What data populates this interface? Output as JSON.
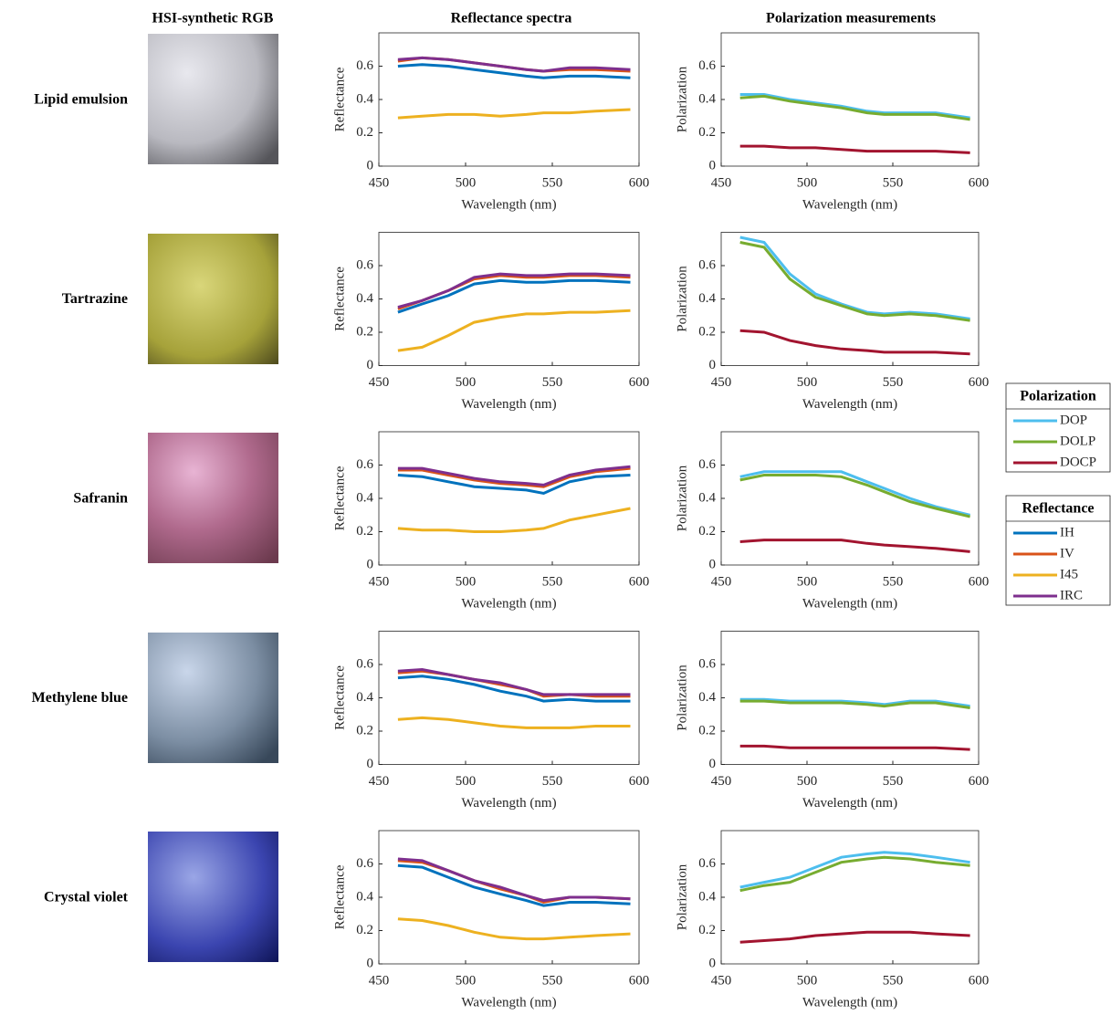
{
  "column_titles": [
    "HSI-synthetic RGB",
    "Reflectance spectra",
    "Polarization measurements"
  ],
  "row_labels": [
    "Lipid emulsion",
    "Tartrazine",
    "Safranin",
    "Methylene blue",
    "Crystal violet"
  ],
  "legends": [
    {
      "title": "Polarization"
    },
    {
      "title": "Reflectance"
    }
  ],
  "chart_data": [
    {
      "type": "line",
      "xlabel": "Wavelength (nm)",
      "ylabel": "Reflectance",
      "x": [
        461,
        475,
        490,
        505,
        520,
        535,
        545,
        560,
        575,
        595
      ],
      "xlim": [
        450,
        600
      ],
      "ylim": [
        0,
        0.8
      ],
      "xticks": [
        450,
        500,
        550,
        600
      ],
      "yticks": [
        0,
        0.2,
        0.4,
        0.6
      ],
      "series": [
        {
          "name": "IH",
          "color": "#0072BD",
          "values": [
            0.6,
            0.61,
            0.6,
            0.58,
            0.56,
            0.54,
            0.53,
            0.54,
            0.54,
            0.53
          ]
        },
        {
          "name": "IV",
          "color": "#D95319",
          "values": [
            0.63,
            0.65,
            0.64,
            0.62,
            0.6,
            0.58,
            0.57,
            0.58,
            0.58,
            0.57
          ]
        },
        {
          "name": "I45",
          "color": "#EDB120",
          "values": [
            0.29,
            0.3,
            0.31,
            0.31,
            0.3,
            0.31,
            0.32,
            0.32,
            0.33,
            0.34
          ]
        },
        {
          "name": "IRC",
          "color": "#7E2F8E",
          "values": [
            0.64,
            0.65,
            0.64,
            0.62,
            0.6,
            0.58,
            0.57,
            0.59,
            0.59,
            0.58
          ]
        }
      ]
    },
    {
      "type": "line",
      "xlabel": "Wavelength (nm)",
      "ylabel": "Polarization",
      "x": [
        461,
        475,
        490,
        505,
        520,
        535,
        545,
        560,
        575,
        595
      ],
      "xlim": [
        450,
        600
      ],
      "ylim": [
        0,
        0.8
      ],
      "xticks": [
        450,
        500,
        550,
        600
      ],
      "yticks": [
        0,
        0.2,
        0.4,
        0.6
      ],
      "series": [
        {
          "name": "DOP",
          "color": "#4DBEEE",
          "values": [
            0.43,
            0.43,
            0.4,
            0.38,
            0.36,
            0.33,
            0.32,
            0.32,
            0.32,
            0.29
          ]
        },
        {
          "name": "DOLP",
          "color": "#77AC30",
          "values": [
            0.41,
            0.42,
            0.39,
            0.37,
            0.35,
            0.32,
            0.31,
            0.31,
            0.31,
            0.28
          ]
        },
        {
          "name": "DOCP",
          "color": "#A2142F",
          "values": [
            0.12,
            0.12,
            0.11,
            0.11,
            0.1,
            0.09,
            0.09,
            0.09,
            0.09,
            0.08
          ]
        }
      ]
    },
    {
      "type": "line",
      "xlabel": "Wavelength (nm)",
      "ylabel": "Reflectance",
      "x": [
        461,
        475,
        490,
        505,
        520,
        535,
        545,
        560,
        575,
        595
      ],
      "xlim": [
        450,
        600
      ],
      "ylim": [
        0,
        0.8
      ],
      "xticks": [
        450,
        500,
        550,
        600
      ],
      "yticks": [
        0,
        0.2,
        0.4,
        0.6
      ],
      "series": [
        {
          "name": "IH",
          "color": "#0072BD",
          "values": [
            0.32,
            0.37,
            0.42,
            0.49,
            0.51,
            0.5,
            0.5,
            0.51,
            0.51,
            0.5
          ]
        },
        {
          "name": "IV",
          "color": "#D95319",
          "values": [
            0.34,
            0.39,
            0.45,
            0.52,
            0.54,
            0.53,
            0.53,
            0.54,
            0.54,
            0.53
          ]
        },
        {
          "name": "I45",
          "color": "#EDB120",
          "values": [
            0.09,
            0.11,
            0.18,
            0.26,
            0.29,
            0.31,
            0.31,
            0.32,
            0.32,
            0.33
          ]
        },
        {
          "name": "IRC",
          "color": "#7E2F8E",
          "values": [
            0.35,
            0.39,
            0.45,
            0.53,
            0.55,
            0.54,
            0.54,
            0.55,
            0.55,
            0.54
          ]
        }
      ]
    },
    {
      "type": "line",
      "xlabel": "Wavelength (nm)",
      "ylabel": "Polarization",
      "x": [
        461,
        475,
        490,
        505,
        520,
        535,
        545,
        560,
        575,
        595
      ],
      "xlim": [
        450,
        600
      ],
      "ylim": [
        0,
        0.8
      ],
      "xticks": [
        450,
        500,
        550,
        600
      ],
      "yticks": [
        0,
        0.2,
        0.4,
        0.6
      ],
      "series": [
        {
          "name": "DOP",
          "color": "#4DBEEE",
          "values": [
            0.77,
            0.74,
            0.55,
            0.43,
            0.37,
            0.32,
            0.31,
            0.32,
            0.31,
            0.28
          ]
        },
        {
          "name": "DOLP",
          "color": "#77AC30",
          "values": [
            0.74,
            0.71,
            0.52,
            0.41,
            0.36,
            0.31,
            0.3,
            0.31,
            0.3,
            0.27
          ]
        },
        {
          "name": "DOCP",
          "color": "#A2142F",
          "values": [
            0.21,
            0.2,
            0.15,
            0.12,
            0.1,
            0.09,
            0.08,
            0.08,
            0.08,
            0.07
          ]
        }
      ]
    },
    {
      "type": "line",
      "xlabel": "Wavelength (nm)",
      "ylabel": "Reflectance",
      "x": [
        461,
        475,
        490,
        505,
        520,
        535,
        545,
        560,
        575,
        595
      ],
      "xlim": [
        450,
        600
      ],
      "ylim": [
        0,
        0.8
      ],
      "xticks": [
        450,
        500,
        550,
        600
      ],
      "yticks": [
        0,
        0.2,
        0.4,
        0.6
      ],
      "series": [
        {
          "name": "IH",
          "color": "#0072BD",
          "values": [
            0.54,
            0.53,
            0.5,
            0.47,
            0.46,
            0.45,
            0.43,
            0.5,
            0.53,
            0.54
          ]
        },
        {
          "name": "IV",
          "color": "#D95319",
          "values": [
            0.57,
            0.57,
            0.54,
            0.51,
            0.49,
            0.48,
            0.47,
            0.53,
            0.56,
            0.58
          ]
        },
        {
          "name": "I45",
          "color": "#EDB120",
          "values": [
            0.22,
            0.21,
            0.21,
            0.2,
            0.2,
            0.21,
            0.22,
            0.27,
            0.3,
            0.34
          ]
        },
        {
          "name": "IRC",
          "color": "#7E2F8E",
          "values": [
            0.58,
            0.58,
            0.55,
            0.52,
            0.5,
            0.49,
            0.48,
            0.54,
            0.57,
            0.59
          ]
        }
      ]
    },
    {
      "type": "line",
      "xlabel": "Wavelength (nm)",
      "ylabel": "Polarization",
      "x": [
        461,
        475,
        490,
        505,
        520,
        535,
        545,
        560,
        575,
        595
      ],
      "xlim": [
        450,
        600
      ],
      "ylim": [
        0,
        0.8
      ],
      "xticks": [
        450,
        500,
        550,
        600
      ],
      "yticks": [
        0,
        0.2,
        0.4,
        0.6
      ],
      "series": [
        {
          "name": "DOP",
          "color": "#4DBEEE",
          "values": [
            0.53,
            0.56,
            0.56,
            0.56,
            0.56,
            0.5,
            0.46,
            0.4,
            0.35,
            0.3
          ]
        },
        {
          "name": "DOLP",
          "color": "#77AC30",
          "values": [
            0.51,
            0.54,
            0.54,
            0.54,
            0.53,
            0.48,
            0.44,
            0.38,
            0.34,
            0.29
          ]
        },
        {
          "name": "DOCP",
          "color": "#A2142F",
          "values": [
            0.14,
            0.15,
            0.15,
            0.15,
            0.15,
            0.13,
            0.12,
            0.11,
            0.1,
            0.08
          ]
        }
      ]
    },
    {
      "type": "line",
      "xlabel": "Wavelength (nm)",
      "ylabel": "Reflectance",
      "x": [
        461,
        475,
        490,
        505,
        520,
        535,
        545,
        560,
        575,
        595
      ],
      "xlim": [
        450,
        600
      ],
      "ylim": [
        0,
        0.8
      ],
      "xticks": [
        450,
        500,
        550,
        600
      ],
      "yticks": [
        0,
        0.2,
        0.4,
        0.6
      ],
      "series": [
        {
          "name": "IH",
          "color": "#0072BD",
          "values": [
            0.52,
            0.53,
            0.51,
            0.48,
            0.44,
            0.41,
            0.38,
            0.39,
            0.38,
            0.38
          ]
        },
        {
          "name": "IV",
          "color": "#D95319",
          "values": [
            0.55,
            0.56,
            0.54,
            0.51,
            0.48,
            0.45,
            0.41,
            0.42,
            0.41,
            0.41
          ]
        },
        {
          "name": "I45",
          "color": "#EDB120",
          "values": [
            0.27,
            0.28,
            0.27,
            0.25,
            0.23,
            0.22,
            0.22,
            0.22,
            0.23,
            0.23
          ]
        },
        {
          "name": "IRC",
          "color": "#7E2F8E",
          "values": [
            0.56,
            0.57,
            0.54,
            0.51,
            0.49,
            0.45,
            0.42,
            0.42,
            0.42,
            0.42
          ]
        }
      ]
    },
    {
      "type": "line",
      "xlabel": "Wavelength (nm)",
      "ylabel": "Polarization",
      "x": [
        461,
        475,
        490,
        505,
        520,
        535,
        545,
        560,
        575,
        595
      ],
      "xlim": [
        450,
        600
      ],
      "ylim": [
        0,
        0.8
      ],
      "xticks": [
        450,
        500,
        550,
        600
      ],
      "yticks": [
        0,
        0.2,
        0.4,
        0.6
      ],
      "series": [
        {
          "name": "DOP",
          "color": "#4DBEEE",
          "values": [
            0.39,
            0.39,
            0.38,
            0.38,
            0.38,
            0.37,
            0.36,
            0.38,
            0.38,
            0.35
          ]
        },
        {
          "name": "DOLP",
          "color": "#77AC30",
          "values": [
            0.38,
            0.38,
            0.37,
            0.37,
            0.37,
            0.36,
            0.35,
            0.37,
            0.37,
            0.34
          ]
        },
        {
          "name": "DOCP",
          "color": "#A2142F",
          "values": [
            0.11,
            0.11,
            0.1,
            0.1,
            0.1,
            0.1,
            0.1,
            0.1,
            0.1,
            0.09
          ]
        }
      ]
    },
    {
      "type": "line",
      "xlabel": "Wavelength (nm)",
      "ylabel": "Reflectance",
      "x": [
        461,
        475,
        490,
        505,
        520,
        535,
        545,
        560,
        575,
        595
      ],
      "xlim": [
        450,
        600
      ],
      "ylim": [
        0,
        0.8
      ],
      "xticks": [
        450,
        500,
        550,
        600
      ],
      "yticks": [
        0,
        0.2,
        0.4,
        0.6
      ],
      "series": [
        {
          "name": "IH",
          "color": "#0072BD",
          "values": [
            0.59,
            0.58,
            0.52,
            0.46,
            0.42,
            0.38,
            0.35,
            0.37,
            0.37,
            0.36
          ]
        },
        {
          "name": "IV",
          "color": "#D95319",
          "values": [
            0.62,
            0.61,
            0.56,
            0.5,
            0.45,
            0.41,
            0.37,
            0.4,
            0.4,
            0.39
          ]
        },
        {
          "name": "I45",
          "color": "#EDB120",
          "values": [
            0.27,
            0.26,
            0.23,
            0.19,
            0.16,
            0.15,
            0.15,
            0.16,
            0.17,
            0.18
          ]
        },
        {
          "name": "IRC",
          "color": "#7E2F8E",
          "values": [
            0.63,
            0.62,
            0.56,
            0.5,
            0.46,
            0.41,
            0.38,
            0.4,
            0.4,
            0.39
          ]
        }
      ]
    },
    {
      "type": "line",
      "xlabel": "Wavelength (nm)",
      "ylabel": "Polarization",
      "x": [
        461,
        475,
        490,
        505,
        520,
        535,
        545,
        560,
        575,
        595
      ],
      "xlim": [
        450,
        600
      ],
      "ylim": [
        0,
        0.8
      ],
      "xticks": [
        450,
        500,
        550,
        600
      ],
      "yticks": [
        0,
        0.2,
        0.4,
        0.6
      ],
      "series": [
        {
          "name": "DOP",
          "color": "#4DBEEE",
          "values": [
            0.46,
            0.49,
            0.52,
            0.58,
            0.64,
            0.66,
            0.67,
            0.66,
            0.64,
            0.61
          ]
        },
        {
          "name": "DOLP",
          "color": "#77AC30",
          "values": [
            0.44,
            0.47,
            0.49,
            0.55,
            0.61,
            0.63,
            0.64,
            0.63,
            0.61,
            0.59
          ]
        },
        {
          "name": "DOCP",
          "color": "#A2142F",
          "values": [
            0.13,
            0.14,
            0.15,
            0.17,
            0.18,
            0.19,
            0.19,
            0.19,
            0.18,
            0.17
          ]
        }
      ]
    }
  ]
}
